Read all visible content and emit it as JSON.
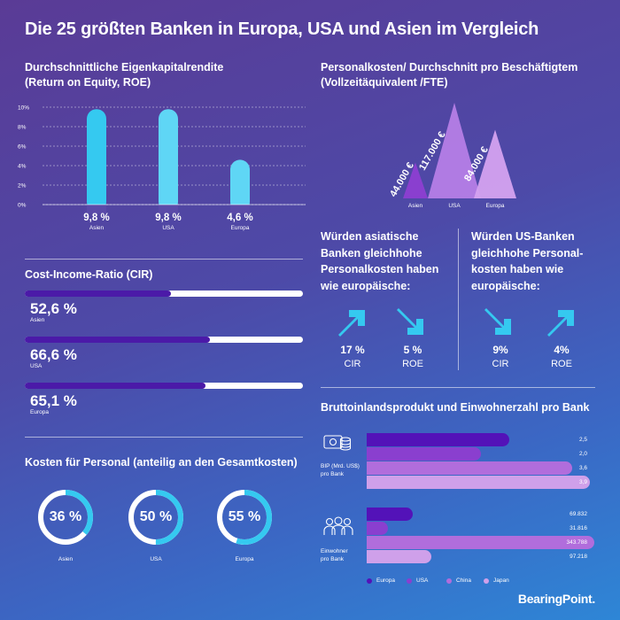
{
  "title": "Die 25 größten Banken in Europa, USA und Asien im Vergleich",
  "colors": {
    "cyan": "#35c9f0",
    "light_cyan": "#5fd6f5",
    "europa": "#5312b8",
    "usa": "#8a3fcf",
    "china": "#b16ddc",
    "japan": "#cfa0ea",
    "cir_fill": "#4b1aa8"
  },
  "roe": {
    "title_line1": "Durchschnittliche Eigenkapitalrendite",
    "title_line2": "(Return on Equity, ROE)"
  },
  "personal": {
    "title_line1": "Personalkosten/ Durchschnitt pro Beschäftigtem",
    "title_line2": "(Vollzeitäquivalent /FTE)"
  },
  "cir": {
    "title": "Cost-Income-Ratio (CIR)"
  },
  "kosten": {
    "title": "Kosten für Personal (anteilig an den Gesamtkosten)"
  },
  "asia_question": {
    "line1": "Würden asiatische",
    "line2": "Banken gleichhohe",
    "line3": "Personalkosten haben",
    "line4": "wie europäische:",
    "metrics": [
      {
        "value": "17 %",
        "label": "CIR",
        "direction": "up"
      },
      {
        "value": "5 %",
        "label": "ROE",
        "direction": "down"
      }
    ]
  },
  "us_question": {
    "line1": "Würden US-Banken",
    "line2": "gleichhohe Personal-",
    "line3": "kosten haben wie",
    "line4": "europäische:",
    "metrics": [
      {
        "value": "9%",
        "label": "CIR",
        "direction": "down"
      },
      {
        "value": "4%",
        "label": "ROE",
        "direction": "up"
      }
    ]
  },
  "bip": {
    "title": "Bruttoinlandsprodukt und Einwohnerzahl pro Bank",
    "group1_line1": "BIP (Mrd. US$)",
    "group1_line2": "pro Bank",
    "group2_line1": "Einwohner",
    "group2_line2": "pro Bank"
  },
  "brand": "BearingPoint.",
  "chart_data": [
    {
      "type": "bar",
      "title": "Durchschnittliche Eigenkapitalrendite (Return on Equity, ROE)",
      "categories": [
        "Asien",
        "USA",
        "Europa"
      ],
      "values": [
        9.8,
        9.8,
        4.6
      ],
      "value_labels": [
        "9,8 %",
        "9,8 %",
        "4,6 %"
      ],
      "y_ticks": [
        "0%",
        "2%",
        "4%",
        "6%",
        "8%",
        "10%"
      ],
      "ylim": [
        0,
        10
      ],
      "grid": true
    },
    {
      "type": "area",
      "title": "Personalkosten/ Durchschnitt pro Beschäftigtem (Vollzeitäquivalent /FTE)",
      "categories": [
        "Asien",
        "USA",
        "Europa"
      ],
      "values": [
        44000,
        117000,
        84000
      ],
      "value_labels": [
        "44.000 €",
        "117.000 €",
        "84.000 €"
      ]
    },
    {
      "type": "bar",
      "title": "Cost-Income-Ratio (CIR)",
      "orientation": "horizontal",
      "categories": [
        "Asien",
        "USA",
        "Europa"
      ],
      "values": [
        52.6,
        66.6,
        65.1
      ],
      "value_labels": [
        "52,6 %",
        "66,6 %",
        "65,1 %"
      ],
      "xlim": [
        0,
        100
      ]
    },
    {
      "type": "pie",
      "title": "Kosten für Personal (anteilig an den Gesamtkosten)",
      "categories": [
        "Asien",
        "USA",
        "Europa"
      ],
      "values": [
        36,
        50,
        55
      ],
      "value_labels": [
        "36 %",
        "50 %",
        "55 %"
      ]
    },
    {
      "type": "bar",
      "title": "Bruttoinlandsprodukt und Einwohnerzahl pro Bank",
      "orientation": "horizontal",
      "categories": [
        "BIP (Mrd. US$) pro Bank",
        "Einwohner pro Bank"
      ],
      "series": [
        {
          "name": "Europa",
          "values": [
            2.5,
            69832
          ],
          "value_labels": [
            "2,5",
            "69.832"
          ]
        },
        {
          "name": "USA",
          "values": [
            2.0,
            31816
          ],
          "value_labels": [
            "2,0",
            "31.816"
          ]
        },
        {
          "name": "China",
          "values": [
            3.6,
            343788
          ],
          "value_labels": [
            "3,6",
            "343.788"
          ]
        },
        {
          "name": "Japan",
          "values": [
            3.9,
            97218
          ],
          "value_labels": [
            "3,9",
            "97.218"
          ]
        }
      ]
    }
  ]
}
